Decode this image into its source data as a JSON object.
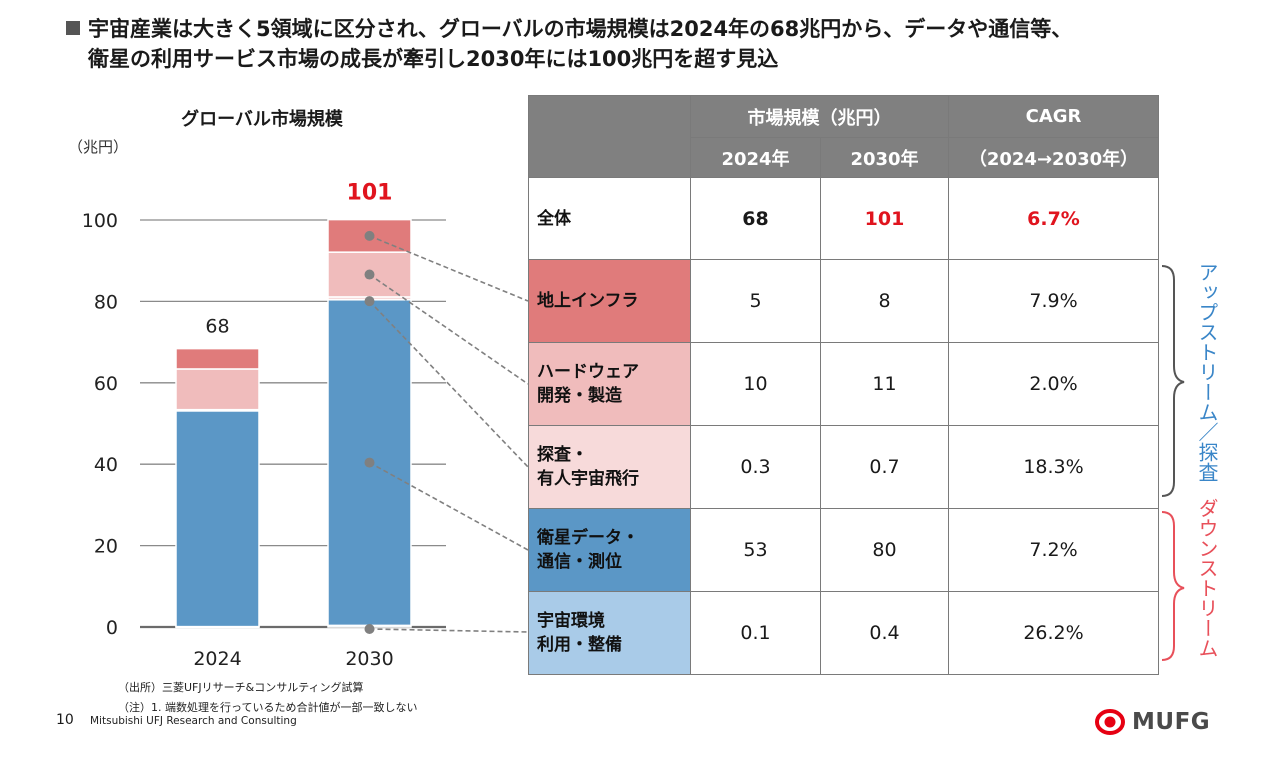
{
  "headline": {
    "line1": "宇宙産業は大きく5領域に区分され、グローバルの市場規模は2024年の68兆円から、データや通信等、",
    "line2": "衛星の利用サービス市場の成長が牽引し2030年には100兆円を超す見込"
  },
  "chart_data": {
    "type": "bar",
    "stacked": true,
    "title": "グローバル市場規模",
    "ylabel": "（兆円）",
    "xlabel": "",
    "categories": [
      "2024",
      "2030"
    ],
    "ylim": [
      0,
      100
    ],
    "yticks": [
      "0",
      "20",
      "40",
      "60",
      "80",
      "100"
    ],
    "grid": true,
    "totals": [
      "68",
      "101"
    ],
    "series": [
      {
        "name": "宇宙環境利用・整備",
        "color": "#a9cbe8",
        "values": [
          0.1,
          0.4
        ]
      },
      {
        "name": "衛星データ・通信・測位",
        "color": "#5b97c6",
        "values": [
          53,
          80
        ]
      },
      {
        "name": "探査・有人宇宙飛行",
        "color": "#f7dada",
        "values": [
          0.3,
          0.7
        ]
      },
      {
        "name": "ハードウェア開発・製造",
        "color": "#f0bcbc",
        "values": [
          10,
          11
        ]
      },
      {
        "name": "地上インフラ",
        "color": "#e07b7b",
        "values": [
          5,
          8
        ]
      }
    ],
    "total_2030_color": "#e0141e"
  },
  "table": {
    "header_group": "市場規模（兆円）",
    "header_cagr": "CAGR",
    "col_2024": "2024年",
    "col_2030": "2030年",
    "col_cagr_range": "（2024→2030年）",
    "total": {
      "label": "全体",
      "v2024": "68",
      "v2030": "101",
      "cagr": "6.7%"
    },
    "rows": [
      {
        "label1": "地上インフラ",
        "label2": "",
        "v2024": "5",
        "v2030": "8",
        "cagr": "7.9%",
        "color": "#e07b7b"
      },
      {
        "label1": "ハードウェア",
        "label2": "開発・製造",
        "v2024": "10",
        "v2030": "11",
        "cagr": "2.0%",
        "color": "#f0bcbc"
      },
      {
        "label1": "探査・",
        "label2": "有人宇宙飛行",
        "v2024": "0.3",
        "v2030": "0.7",
        "cagr": "18.3%",
        "color": "#f7dada"
      },
      {
        "label1": "衛星データ・",
        "label2": "通信・測位",
        "v2024": "53",
        "v2030": "80",
        "cagr": "7.2%",
        "color": "#5b97c6"
      },
      {
        "label1": "宇宙環境",
        "label2": "利用・整備",
        "v2024": "0.1",
        "v2030": "0.4",
        "cagr": "26.2%",
        "color": "#a9cbe8"
      }
    ]
  },
  "groups": {
    "upstream": {
      "label": "アップストリーム／探査",
      "color": "#3a86c8"
    },
    "downstream": {
      "label": "ダウンストリーム",
      "color": "#e8505a"
    }
  },
  "footer": {
    "source": "（出所）三菱UFJリサーチ&コンサルティング試算",
    "note": "（注）1. 端数処理を行っているため合計値が一部一致しない",
    "page": "10",
    "company": "Mitsubishi UFJ Research and Consulting"
  },
  "logo": {
    "text": "MUFG",
    "color": "#e60012"
  }
}
